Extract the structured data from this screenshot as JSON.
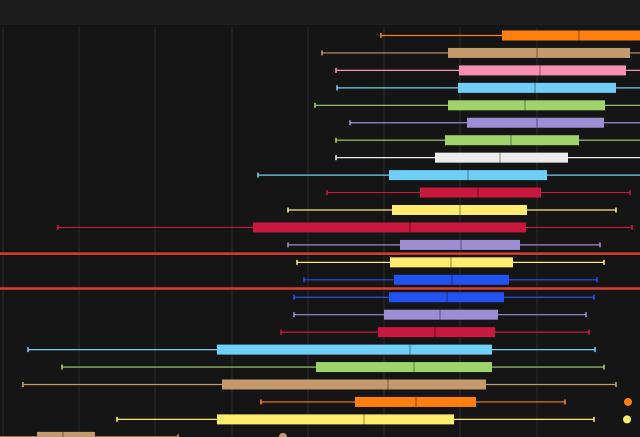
{
  "colors": {
    "background": "#151515",
    "top_bar": "#1d1d1d",
    "grid": "#2d2d2d",
    "highlight_line": "#d9402e"
  },
  "chart_data": {
    "type": "boxplot",
    "orientation": "horizontal",
    "title": "",
    "xlabel": "",
    "ylabel": "",
    "grid": "vertical lines",
    "legend": "none",
    "visible_x_range": [
      0,
      640
    ],
    "reference_lines": [
      {
        "y_between_rows": [
          12,
          13
        ],
        "color": "#d9402e"
      },
      {
        "y_between_rows": [
          14,
          15
        ],
        "color": "#d9402e"
      }
    ],
    "series": [
      {
        "color": "#ff7f0e",
        "min": 381,
        "q1": 502,
        "median": 579,
        "q3": 645,
        "max": 645
      },
      {
        "color": "#c49a6c",
        "min": 322,
        "q1": 448,
        "median": 537,
        "q3": 630,
        "max": 645
      },
      {
        "color": "#f78fb3",
        "min": 336,
        "q1": 459,
        "median": 540,
        "q3": 626,
        "max": 645
      },
      {
        "color": "#6fcff6",
        "min": 337,
        "q1": 458,
        "median": 535,
        "q3": 616,
        "max": 645
      },
      {
        "color": "#9fd36c",
        "min": 315,
        "q1": 448,
        "median": 525,
        "q3": 605,
        "max": 645
      },
      {
        "color": "#9c8dd4",
        "min": 350,
        "q1": 467,
        "median": 537,
        "q3": 604,
        "max": 645
      },
      {
        "color": "#9fd36c",
        "min": 336,
        "q1": 445,
        "median": 511,
        "q3": 579,
        "max": 645
      },
      {
        "color": "#ececec",
        "min": 336,
        "q1": 435,
        "median": 500,
        "q3": 568,
        "max": 645
      },
      {
        "color": "#6fcff6",
        "min": 258,
        "q1": 389,
        "median": 468,
        "q3": 547,
        "max": 645
      },
      {
        "color": "#c8183e",
        "min": 327,
        "q1": 420,
        "median": 478,
        "q3": 541,
        "max": 630
      },
      {
        "color": "#ffec6e",
        "min": 288,
        "q1": 392,
        "median": 460,
        "q3": 527,
        "max": 616
      },
      {
        "color": "#c8183e",
        "min": 58,
        "q1": 253,
        "median": 410,
        "q3": 526,
        "max": 632
      },
      {
        "color": "#9c8dd4",
        "min": 288,
        "q1": 400,
        "median": 461,
        "q3": 520,
        "max": 600
      },
      {
        "color": "#ffec6e",
        "min": 297,
        "q1": 390,
        "median": 451,
        "q3": 513,
        "max": 604
      },
      {
        "color": "#2352f2",
        "min": 304,
        "q1": 394,
        "median": 452,
        "q3": 509,
        "max": 597
      },
      {
        "color": "#2352f2",
        "min": 294,
        "q1": 389,
        "median": 447,
        "q3": 504,
        "max": 594
      },
      {
        "color": "#9c8dd4",
        "min": 294,
        "q1": 384,
        "median": 440,
        "q3": 498,
        "max": 586
      },
      {
        "color": "#c8183e",
        "min": 281,
        "q1": 378,
        "median": 435,
        "q3": 495,
        "max": 589
      },
      {
        "color": "#6fcff6",
        "min": 28,
        "q1": 217,
        "median": 410,
        "q3": 492,
        "max": 595
      },
      {
        "color": "#9fd36c",
        "min": 62,
        "q1": 316,
        "median": 414,
        "q3": 492,
        "max": 604
      },
      {
        "color": "#c49a6c",
        "min": 23,
        "q1": 222,
        "median": 388,
        "q3": 486,
        "max": 616
      },
      {
        "color": "#ff7f0e",
        "min": 261,
        "q1": 355,
        "median": 416,
        "q3": 476,
        "max": 565,
        "outliers": [
          628
        ]
      },
      {
        "color": "#ffec6e",
        "min": 117,
        "q1": 217,
        "median": 364,
        "q3": 454,
        "max": 594,
        "outliers": [
          627
        ]
      },
      {
        "color": "#c49a6c",
        "min": -10,
        "q1": 37,
        "median": 63,
        "q3": 95,
        "max": 178,
        "outliers": [
          283
        ]
      }
    ]
  }
}
